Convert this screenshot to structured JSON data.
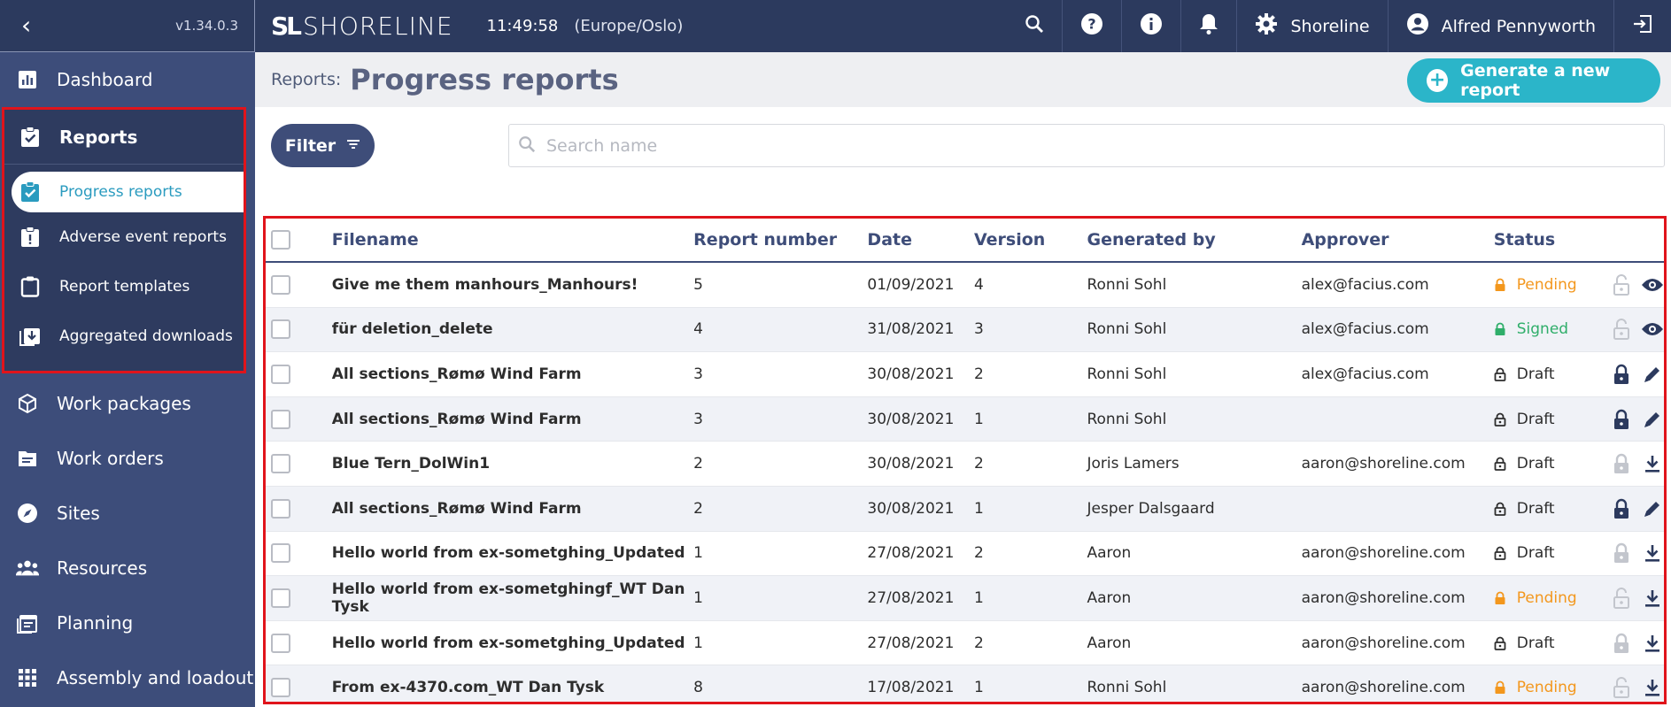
{
  "sidebar": {
    "version": "v1.34.0.3",
    "items": [
      {
        "label": "Dashboard",
        "icon": "bar-chart-icon"
      },
      {
        "label": "Reports",
        "icon": "clipboard-check-icon"
      },
      {
        "label": "Work packages",
        "icon": "package-icon"
      },
      {
        "label": "Work orders",
        "icon": "inbox-icon"
      },
      {
        "label": "Sites",
        "icon": "compass-icon"
      },
      {
        "label": "Resources",
        "icon": "people-icon"
      },
      {
        "label": "Planning",
        "icon": "calendar-icon"
      },
      {
        "label": "Assembly and loadout",
        "icon": "grid-icon"
      }
    ],
    "reports_sub": [
      {
        "label": "Progress reports",
        "icon": "clipboard-check-icon",
        "active": true
      },
      {
        "label": "Adverse event reports",
        "icon": "clipboard-alert-icon"
      },
      {
        "label": "Report templates",
        "icon": "clipboard-icon"
      },
      {
        "label": "Aggregated downloads",
        "icon": "download-box-icon"
      }
    ]
  },
  "topbar": {
    "logo_mark": "SL",
    "logo_text": "SHORELINE",
    "clock": "11:49:58",
    "timezone": "(Europe/Oslo)",
    "org": "Shoreline",
    "user": "Alfred Pennyworth"
  },
  "page": {
    "breadcrumb": "Reports:",
    "title": "Progress reports",
    "generate_label": "Generate a new report",
    "filter_label": "Filter",
    "search_placeholder": "Search name"
  },
  "table": {
    "columns": [
      "Filename",
      "Report number",
      "Date",
      "Version",
      "Generated by",
      "Approver",
      "Status"
    ],
    "rows": [
      {
        "filename": "Give me them manhours_Manhours!",
        "number": "5",
        "date": "01/09/2021",
        "version": "4",
        "generated_by": "Ronni Sohl",
        "approver": "alex@facius.com",
        "status": "Pending",
        "action": "view"
      },
      {
        "filename": "für deletion_delete",
        "number": "4",
        "date": "31/08/2021",
        "version": "3",
        "generated_by": "Ronni Sohl",
        "approver": "alex@facius.com",
        "status": "Signed",
        "action": "view"
      },
      {
        "filename": "All sections_Rømø Wind Farm",
        "number": "3",
        "date": "30/08/2021",
        "version": "2",
        "generated_by": "Ronni Sohl",
        "approver": "alex@facius.com",
        "status": "Draft",
        "action": "edit"
      },
      {
        "filename": "All sections_Rømø Wind Farm",
        "number": "3",
        "date": "30/08/2021",
        "version": "1",
        "generated_by": "Ronni Sohl",
        "approver": "",
        "status": "Draft",
        "action": "edit"
      },
      {
        "filename": "Blue Tern_DolWin1",
        "number": "2",
        "date": "30/08/2021",
        "version": "2",
        "generated_by": "Joris Lamers",
        "approver": "aaron@shoreline.com",
        "status": "Draft",
        "action": "download"
      },
      {
        "filename": "All sections_Rømø Wind Farm",
        "number": "2",
        "date": "30/08/2021",
        "version": "1",
        "generated_by": "Jesper Dalsgaard",
        "approver": "",
        "status": "Draft",
        "action": "edit"
      },
      {
        "filename": "Hello world from ex-sometghing_Updated",
        "number": "1",
        "date": "27/08/2021",
        "version": "2",
        "generated_by": "Aaron",
        "approver": "aaron@shoreline.com",
        "status": "Draft",
        "action": "download"
      },
      {
        "filename": "Hello world from ex-sometghingf_WT Dan Tysk",
        "number": "1",
        "date": "27/08/2021",
        "version": "1",
        "generated_by": "Aaron",
        "approver": "aaron@shoreline.com",
        "status": "Pending",
        "action": "download"
      },
      {
        "filename": "Hello world from ex-sometghing_Updated",
        "number": "1",
        "date": "27/08/2021",
        "version": "2",
        "generated_by": "Aaron",
        "approver": "aaron@shoreline.com",
        "status": "Draft",
        "action": "download"
      },
      {
        "filename": "From ex-4370.com_WT Dan Tysk",
        "number": "8",
        "date": "17/08/2021",
        "version": "1",
        "generated_by": "Ronni Sohl",
        "approver": "aaron@shoreline.com",
        "status": "Pending",
        "action": "download"
      }
    ]
  },
  "colors": {
    "navy": "#2c3a5e",
    "sidebar": "#3d4d7a",
    "accent": "#2bb5c9",
    "pending": "#f3971d",
    "signed": "#2fae6a"
  }
}
